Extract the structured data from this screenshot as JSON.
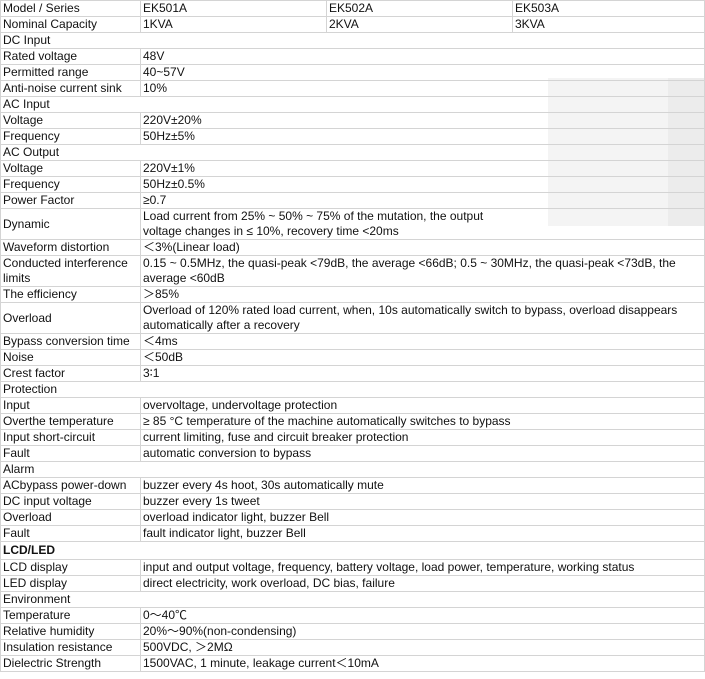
{
  "header": {
    "label": "Model / Series",
    "values": [
      "EK501A",
      "EK502A",
      "EK503A"
    ]
  },
  "rows": [
    {
      "label": "Nominal Capacity",
      "values": [
        "1KVA",
        "2KVA",
        "3KVA"
      ]
    },
    {
      "section": "DC Input"
    },
    {
      "label": "Rated voltage",
      "value": "48V"
    },
    {
      "label": "Permitted range",
      "value": "40~57V"
    },
    {
      "label": "Anti-noise current sink",
      "value": "10%"
    },
    {
      "section": "AC Input"
    },
    {
      "label": "Voltage",
      "value": "220V±20%"
    },
    {
      "label": "Frequency",
      "value": "50Hz±5%"
    },
    {
      "section": "AC Output"
    },
    {
      "label": "Voltage",
      "value": "220V±1%"
    },
    {
      "label": "Frequency",
      "value": "50Hz±0.5%"
    },
    {
      "label": "Power Factor",
      "value": "≥0.7"
    },
    {
      "label": "Dynamic",
      "value": "Load current from 25% ~ 50% ~ 75% of the mutation, the output\nvoltage changes in ≤ 10%, recovery time <20ms"
    },
    {
      "label": "Waveform distortion",
      "value": "＜3%(Linear load)"
    },
    {
      "label": "Conducted interference limits",
      "value": "0.15 ~ 0.5MHz, the quasi-peak <79dB, the average <66dB; 0.5 ~ 30MHz, the quasi-peak <73dB, the average <60dB"
    },
    {
      "label": "The efficiency",
      "value": "＞85%"
    },
    {
      "label": "Overload",
      "value": "Overload of 120% rated load current, when, 10s automatically switch to bypass, overload disappears automatically after a recovery"
    },
    {
      "label": "Bypass conversion time",
      "value": "＜4ms"
    },
    {
      "label": "Noise",
      "value": "＜50dB"
    },
    {
      "label": "Crest factor",
      "value": "3∶1"
    },
    {
      "section": "Protection"
    },
    {
      "label": "Input",
      "value": "overvoltage, undervoltage protection"
    },
    {
      "label": "Overthe temperature",
      "value": "≥ 85 °C temperature of the machine automatically switches to bypass"
    },
    {
      "label": "Input short-circuit",
      "value": "current limiting, fuse and circuit breaker protection"
    },
    {
      "label": "Fault",
      "value": "automatic conversion to bypass"
    },
    {
      "section": "Alarm"
    },
    {
      "label": "ACbypass power-down",
      "value": "buzzer every 4s hoot, 30s automatically mute"
    },
    {
      "label": "DC input voltage",
      "value": "buzzer every 1s tweet"
    },
    {
      "label": "Overload",
      "value": "overload indicator light, buzzer Bell"
    },
    {
      "label": "Fault",
      "value": "fault indicator light, buzzer Bell"
    },
    {
      "section": "LCD/LED",
      "bold": true
    },
    {
      "label": "LCD display",
      "value": "input and output voltage, frequency, battery voltage, load power, temperature, working status"
    },
    {
      "label": "LED display",
      "value": "direct electricity, work overload, DC bias, failure"
    },
    {
      "section": "Environment"
    },
    {
      "label": "Temperature",
      "value": "0～40℃"
    },
    {
      "label": "Relative humidity",
      "value": "20%～90%(non-condensing)"
    },
    {
      "label": "Insulation resistance",
      "value": "500VDC, ＞2MΩ"
    },
    {
      "label": "Dielectric Strength",
      "value": "1500VAC, 1 minute, leakage current＜10mA"
    }
  ]
}
